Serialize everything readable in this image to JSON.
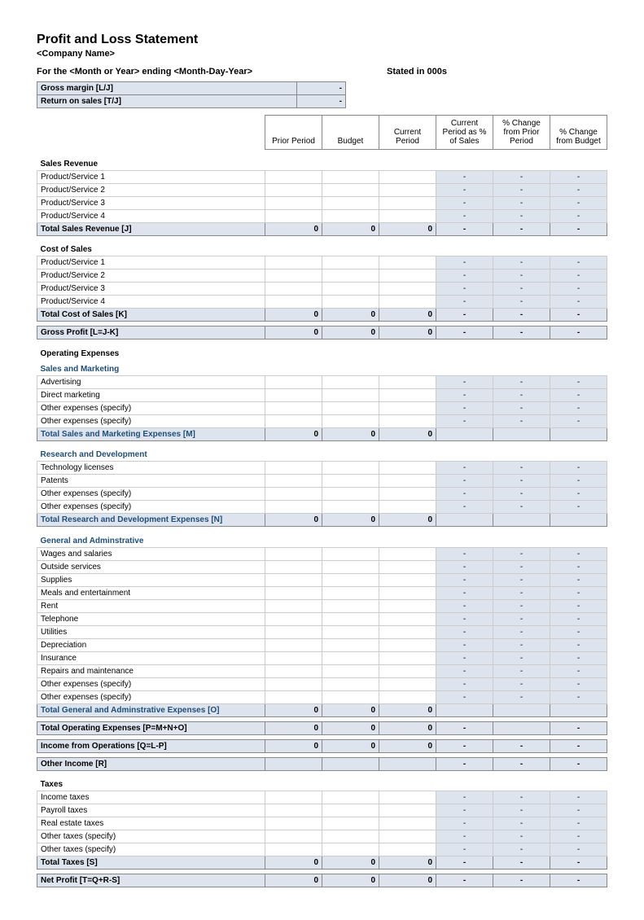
{
  "title": "Profit and Loss Statement",
  "company": "<Company Name>",
  "period_label": "For the <Month or Year> ending <Month-Day-Year>",
  "stated_in": "Stated in 000s",
  "metrics": {
    "gross_margin_label": "Gross margin  [L/J]",
    "gross_margin_val": "-",
    "return_on_sales_label": "Return on sales  [T/J]",
    "return_on_sales_val": "-"
  },
  "columns": {
    "prior": "Prior Period",
    "budget": "Budget",
    "current": "Current Period",
    "current_pct": "Current Period as % of Sales",
    "chg_prior": "% Change from Prior Period",
    "chg_budget": "% Change from Budget"
  },
  "colors": {
    "header_bg": "#dde4ee",
    "border": "#888888",
    "light_border": "#cccccc",
    "section_blue": "#1f4e79"
  },
  "sections": {
    "sales_revenue": {
      "title": "Sales Revenue",
      "rows": [
        "Product/Service 1",
        "Product/Service 2",
        "Product/Service 3",
        "Product/Service 4"
      ],
      "total_label": "Total Sales Revenue  [J]",
      "total_vals": [
        "0",
        "0",
        "0",
        "-",
        "-",
        "-"
      ]
    },
    "cost_of_sales": {
      "title": "Cost of Sales",
      "rows": [
        "Product/Service 1",
        "Product/Service 2",
        "Product/Service 3",
        "Product/Service 4"
      ],
      "total_label": "Total Cost of Sales  [K]",
      "total_vals": [
        "0",
        "0",
        "0",
        "-",
        "-",
        "-"
      ]
    },
    "gross_profit": {
      "label": "Gross Profit  [L=J-K]",
      "vals": [
        "0",
        "0",
        "0",
        "-",
        "-",
        "-"
      ]
    },
    "operating_expenses_title": "Operating Expenses",
    "sales_marketing": {
      "title": "Sales and Marketing",
      "rows": [
        "Advertising",
        "Direct marketing",
        "Other expenses (specify)",
        "Other expenses (specify)"
      ],
      "total_label": "Total Sales and Marketing Expenses  [M]",
      "total_vals": [
        "0",
        "0",
        "0",
        "",
        "",
        ""
      ]
    },
    "rnd": {
      "title": "Research and Development",
      "rows": [
        "Technology licenses",
        "Patents",
        "Other expenses (specify)",
        "Other expenses (specify)"
      ],
      "total_label": "Total Research and Development Expenses  [N]",
      "total_vals": [
        "0",
        "0",
        "0",
        "",
        "",
        ""
      ]
    },
    "ga": {
      "title": "General and Adminstrative",
      "rows": [
        "Wages and salaries",
        "Outside services",
        "Supplies",
        "Meals and entertainment",
        "Rent",
        "Telephone",
        "Utilities",
        "Depreciation",
        "Insurance",
        "Repairs and maintenance",
        "Other expenses (specify)",
        "Other expenses (specify)"
      ],
      "total_label": "Total General and Adminstrative Expenses  [O]",
      "total_vals": [
        "0",
        "0",
        "0",
        "",
        "",
        ""
      ]
    },
    "total_opex": {
      "label": "Total Operating Expenses  [P=M+N+O]",
      "vals": [
        "0",
        "0",
        "0",
        "-",
        "",
        "-"
      ]
    },
    "income_ops": {
      "label": "Income from Operations  [Q=L-P]",
      "vals": [
        "0",
        "0",
        "0",
        "-",
        "-",
        "-"
      ]
    },
    "other_income": {
      "label": "Other Income  [R]",
      "vals": [
        "",
        "",
        "",
        "-",
        "-",
        "-"
      ]
    },
    "taxes": {
      "title": "Taxes",
      "rows": [
        "Income taxes",
        "Payroll taxes",
        "Real estate taxes",
        "Other taxes (specify)",
        "Other taxes (specify)"
      ],
      "total_label": "Total Taxes  [S]",
      "total_vals": [
        "0",
        "0",
        "0",
        "-",
        "-",
        "-"
      ]
    },
    "net_profit": {
      "label": "Net Profit  [T=Q+R-S]",
      "vals": [
        "0",
        "0",
        "0",
        "-",
        "-",
        "-"
      ]
    }
  },
  "dash": "-"
}
